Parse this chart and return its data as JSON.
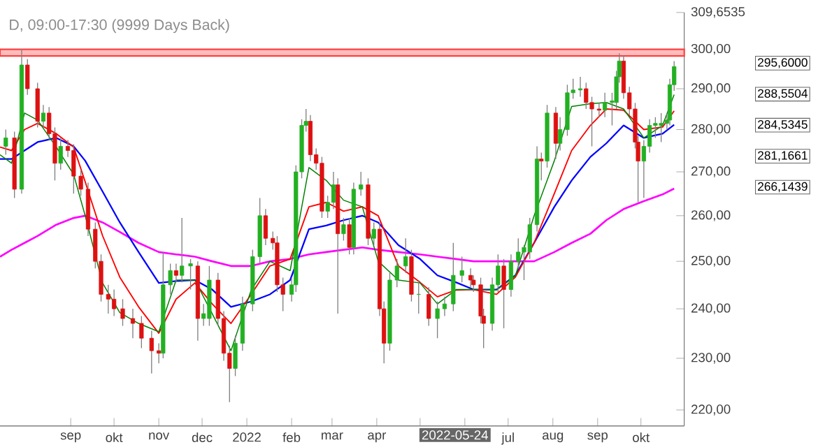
{
  "chart_data": {
    "type": "candlestick",
    "title": "D, 09:00-17:30 (9999 Days Back)",
    "log": true,
    "xlim": [
      "2021-07-14",
      "2022-10-31"
    ],
    "ylim": [
      217,
      309.6535
    ],
    "xticks": [
      {
        "value": "2021-09-01",
        "label": "sep"
      },
      {
        "value": "2021-10-01",
        "label": "okt"
      },
      {
        "value": "2021-11-01",
        "label": "nov"
      },
      {
        "value": "2021-12-01",
        "label": "dec"
      },
      {
        "value": "2022-01-01",
        "label": "2022"
      },
      {
        "value": "2022-02-01",
        "label": "feb"
      },
      {
        "value": "2022-03-01",
        "label": "mar"
      },
      {
        "value": "2022-04-01",
        "label": "apr"
      },
      {
        "value": "2022-05-01",
        "label": null
      },
      {
        "value": "2022-06-01",
        "label": null
      },
      {
        "value": "2022-07-01",
        "label": "jul"
      },
      {
        "value": "2022-08-01",
        "label": "aug"
      },
      {
        "value": "2022-09-01",
        "label": "sep"
      },
      {
        "value": "2022-10-01",
        "label": "okt"
      }
    ],
    "yticks": [
      {
        "value": 220,
        "label": "220,00"
      },
      {
        "value": 230,
        "label": "230,00"
      },
      {
        "value": 240,
        "label": "240,00"
      },
      {
        "value": 250,
        "label": "250,00"
      },
      {
        "value": 260,
        "label": "260,00"
      },
      {
        "value": 270,
        "label": "270,00"
      },
      {
        "value": 280,
        "label": "280,00"
      },
      {
        "value": 290,
        "label": "290,00"
      },
      {
        "value": 300,
        "label": "300,00"
      },
      {
        "value": 309.6535,
        "label": "309,6535"
      }
    ],
    "bands": [
      {
        "axis": "y",
        "from": 298.3,
        "to": 300,
        "color": "#ff4040"
      }
    ],
    "annotations": [
      "2022-05-24",
      "295,6000",
      "288,5504",
      "284,5345",
      "281,1661",
      "266,1439"
    ],
    "x": [
      "2021-07-14",
      "2021-07-22",
      "2021-07-31",
      "2021-08-09",
      "2021-08-22",
      "2021-09-03",
      "2021-09-11",
      "2021-09-23",
      "2021-10-05",
      "2021-10-18",
      "2021-11-01",
      "2021-11-13",
      "2021-11-26",
      "2021-12-08",
      "2021-12-21",
      "2022-01-04",
      "2022-01-17",
      "2022-01-31",
      "2022-02-13",
      "2022-02-25",
      "2022-03-09",
      "2022-03-22",
      "2022-04-02",
      "2022-04-16",
      "2022-05-01",
      "2022-05-13",
      "2022-05-26",
      "2022-06-07",
      "2022-06-23",
      "2022-07-06",
      "2022-07-19",
      "2022-08-02",
      "2022-08-14",
      "2022-08-27",
      "2022-09-07",
      "2022-09-19",
      "2022-10-03",
      "2022-10-16",
      "2022-10-24"
    ],
    "series": [
      {
        "type": "line",
        "color": "#ff00ff",
        "values": [
          251,
          252.5,
          254,
          255.5,
          258,
          259.5,
          260,
          258.5,
          256.4,
          254,
          252,
          251.5,
          251,
          250,
          249,
          249,
          250,
          250.5,
          251.5,
          252,
          252.5,
          253,
          252.5,
          252,
          251.5,
          251,
          250.5,
          250,
          250,
          250,
          250,
          252,
          254,
          256,
          259,
          261.5,
          263.3,
          264.8,
          266.14
        ]
      },
      {
        "type": "line",
        "color": "#0000ff",
        "values": [
          273,
          273,
          275,
          277,
          278,
          276,
          272.6,
          265.5,
          258.5,
          252,
          245.4,
          245.8,
          246,
          244,
          240.4,
          241.5,
          243,
          246,
          257,
          257.8,
          259,
          260,
          258.5,
          253.5,
          250.5,
          247,
          245.5,
          244,
          244,
          247,
          254,
          262,
          268,
          273.5,
          276.7,
          281,
          278,
          279,
          281.17
        ]
      },
      {
        "type": "line",
        "color": "#ff0000",
        "values": [
          275.8,
          275,
          280,
          281.5,
          279,
          275.8,
          267.7,
          255.6,
          246.6,
          240.4,
          235,
          242,
          245.4,
          241,
          237,
          243,
          249,
          250.5,
          262,
          263,
          261,
          262,
          260,
          249,
          245.5,
          242.5,
          243.9,
          244,
          243,
          246.6,
          254,
          265,
          275,
          281,
          285,
          284.7,
          280,
          280.6,
          284.53
        ]
      },
      {
        "type": "line",
        "color": "#008000",
        "values": [
          274,
          272,
          284,
          282.3,
          275.8,
          269.4,
          260,
          245.4,
          239.2,
          237,
          235.3,
          246,
          246,
          239,
          231.5,
          243.9,
          250,
          248,
          271,
          268,
          263.5,
          262,
          250,
          246,
          245.4,
          241,
          244,
          244,
          243.9,
          246.9,
          260,
          272.6,
          285.6,
          286.3,
          286.6,
          285,
          278,
          281,
          288.55
        ]
      },
      {
        "color": "#808080",
        "x": [
          "2021-07-18",
          "2021-07-24",
          "2021-07-29",
          "2021-08-02",
          "2021-08-09",
          "2021-08-13",
          "2021-08-17",
          "2021-08-21",
          "2021-08-25",
          "2021-08-30",
          "2021-09-03",
          "2021-09-08",
          "2021-09-13",
          "2021-09-18",
          "2021-09-22",
          "2021-09-27",
          "2021-10-01",
          "2021-10-07",
          "2021-10-14",
          "2021-10-20",
          "2021-10-27",
          "2021-11-01",
          "2021-11-04",
          "2021-11-09",
          "2021-11-13",
          "2021-11-17",
          "2021-11-23",
          "2021-11-28",
          "2021-12-02",
          "2021-12-06",
          "2021-12-12",
          "2021-12-16",
          "2021-12-20",
          "2021-12-24",
          "2021-12-29",
          "2022-01-05",
          "2022-01-10",
          "2022-01-14",
          "2022-01-19",
          "2022-01-22",
          "2022-01-26",
          "2022-02-01",
          "2022-02-04",
          "2022-02-08",
          "2022-02-11",
          "2022-02-14",
          "2022-02-18",
          "2022-02-22",
          "2022-02-26",
          "2022-03-02",
          "2022-03-05",
          "2022-03-09",
          "2022-03-13",
          "2022-03-16",
          "2022-03-21",
          "2022-03-26",
          "2022-03-30",
          "2022-04-03",
          "2022-04-06",
          "2022-04-10",
          "2022-04-15",
          "2022-04-21",
          "2022-04-25",
          "2022-04-30",
          "2022-05-07",
          "2022-05-13",
          "2022-05-18",
          "2022-05-24",
          "2022-05-30",
          "2022-06-05",
          "2022-06-07",
          "2022-06-12",
          "2022-06-14",
          "2022-06-20",
          "2022-06-24",
          "2022-06-28",
          "2022-07-03",
          "2022-07-08",
          "2022-07-12",
          "2022-07-16",
          "2022-07-21",
          "2022-07-24",
          "2022-07-28",
          "2022-08-03",
          "2022-08-06",
          "2022-08-11",
          "2022-08-15",
          "2022-08-20",
          "2022-08-24",
          "2022-08-28",
          "2022-09-02",
          "2022-09-06",
          "2022-09-11",
          "2022-09-14",
          "2022-09-16",
          "2022-09-19",
          "2022-09-23",
          "2022-09-27",
          "2022-09-29",
          "2022-10-03",
          "2022-10-07",
          "2022-10-11",
          "2022-10-15",
          "2022-10-19",
          "2022-10-21",
          "2022-10-24"
        ],
        "ohlc": [
          [
            276,
            280,
            274,
            278
          ],
          [
            278,
            279.5,
            264,
            266
          ],
          [
            266,
            300,
            265,
            296
          ],
          [
            296,
            297.5,
            288.5,
            290
          ],
          [
            290,
            291.5,
            280.5,
            282
          ],
          [
            282,
            286,
            280.5,
            284
          ],
          [
            284,
            285.5,
            277.5,
            279
          ],
          [
            279,
            280.5,
            268,
            272
          ],
          [
            272,
            278,
            270.5,
            276
          ],
          [
            276,
            277.5,
            273.5,
            275
          ],
          [
            275,
            276.5,
            265,
            269
          ],
          [
            269,
            270.5,
            264.5,
            266
          ],
          [
            266,
            267.5,
            255.5,
            257
          ],
          [
            257,
            258.5,
            248.5,
            250
          ],
          [
            250,
            251.5,
            241.5,
            243
          ],
          [
            243,
            245,
            239,
            242
          ],
          [
            242,
            244,
            238.5,
            240
          ],
          [
            240,
            242,
            236.5,
            238
          ],
          [
            238,
            240,
            234,
            237
          ],
          [
            237,
            238.5,
            232,
            234
          ],
          [
            234,
            235.5,
            227,
            231.5
          ],
          [
            231.5,
            233,
            229,
            231
          ],
          [
            231,
            252,
            230,
            245
          ],
          [
            245,
            249.5,
            243,
            248
          ],
          [
            248,
            249.5,
            245.5,
            247
          ],
          [
            247,
            259.5,
            245.5,
            249
          ],
          [
            249,
            250.5,
            244,
            249.5
          ],
          [
            249,
            250,
            233.5,
            238
          ],
          [
            238,
            241,
            236.5,
            239
          ],
          [
            238,
            249,
            236.5,
            246
          ],
          [
            246,
            247.5,
            236.5,
            238
          ],
          [
            238,
            239.5,
            229.5,
            231
          ],
          [
            231,
            232.5,
            221.5,
            228
          ],
          [
            228,
            234.5,
            226.5,
            233
          ],
          [
            233,
            242.5,
            231.5,
            241
          ],
          [
            241,
            252.5,
            239.5,
            251
          ],
          [
            251,
            264,
            249.5,
            260
          ],
          [
            260,
            261.5,
            253.5,
            255
          ],
          [
            255,
            256.5,
            252.5,
            254
          ],
          [
            254,
            255.5,
            243.5,
            245
          ],
          [
            245,
            246.5,
            239.5,
            243
          ],
          [
            243,
            246.5,
            241.5,
            245
          ],
          [
            245,
            271.5,
            243.5,
            270
          ],
          [
            270,
            282.5,
            268.5,
            281
          ],
          [
            281,
            285,
            279.5,
            282
          ],
          [
            282,
            283.5,
            272.5,
            274
          ],
          [
            274,
            275.5,
            270.5,
            272
          ],
          [
            272,
            273.5,
            259.5,
            261
          ],
          [
            261,
            264.5,
            259.5,
            263
          ],
          [
            263,
            270,
            261.5,
            267
          ],
          [
            267,
            268.5,
            239,
            256
          ],
          [
            256,
            259.5,
            254.5,
            258
          ],
          [
            258,
            259.5,
            251.5,
            253
          ],
          [
            253,
            267.5,
            251.5,
            266
          ],
          [
            266,
            270,
            264.5,
            267
          ],
          [
            267,
            268.5,
            253.5,
            255
          ],
          [
            255,
            258.5,
            253.5,
            257
          ],
          [
            257,
            258.5,
            238.5,
            240
          ],
          [
            240,
            241.5,
            229,
            233
          ],
          [
            233,
            247.5,
            231.5,
            246
          ],
          [
            246,
            250.5,
            244.5,
            249
          ],
          [
            249,
            255,
            247.5,
            251
          ],
          [
            251,
            252.5,
            241.5,
            243
          ],
          [
            243,
            246,
            239,
            243
          ],
          [
            243,
            244.5,
            236.5,
            238
          ],
          [
            238,
            241.5,
            234,
            240
          ],
          [
            240,
            242.5,
            238.5,
            241
          ],
          [
            241,
            254,
            239.5,
            247
          ],
          [
            247,
            251,
            245.5,
            248
          ],
          [
            247,
            248.5,
            244.5,
            246
          ],
          [
            246,
            247,
            243.5,
            245
          ],
          [
            245,
            246.5,
            237,
            238.5
          ],
          [
            238.5,
            240,
            232,
            237
          ],
          [
            237,
            246.5,
            235.5,
            245
          ],
          [
            245,
            251.5,
            243.5,
            249
          ],
          [
            249,
            250.5,
            236,
            244
          ],
          [
            244,
            251.5,
            242.5,
            250
          ],
          [
            250,
            255,
            248.5,
            252
          ],
          [
            252,
            253.5,
            246,
            253
          ],
          [
            252,
            259.5,
            250.5,
            258
          ],
          [
            258,
            276,
            256.5,
            273
          ],
          [
            273,
            274.5,
            268,
            272.5
          ],
          [
            272.5,
            286,
            271,
            284
          ],
          [
            284,
            285.5,
            273,
            276.7
          ],
          [
            276.7,
            283,
            275,
            280
          ],
          [
            280,
            291,
            278.5,
            289
          ],
          [
            289,
            292.5,
            287.5,
            289.7
          ],
          [
            289.7,
            293,
            288,
            290
          ],
          [
            290,
            291.5,
            285,
            286.6
          ],
          [
            286.6,
            288,
            276,
            285
          ],
          [
            285,
            286.5,
            283,
            284.7
          ],
          [
            284.7,
            289,
            283,
            286.6
          ],
          [
            286.6,
            289,
            281,
            287
          ],
          [
            286.6,
            294.5,
            285,
            293
          ],
          [
            293,
            299,
            291.5,
            297
          ],
          [
            297,
            298.5,
            287.5,
            289
          ],
          [
            289,
            290.5,
            283.5,
            285
          ],
          [
            285,
            286.5,
            275.5,
            277
          ],
          [
            277,
            278.5,
            263,
            272.5
          ],
          [
            272.5,
            277.5,
            264,
            276
          ],
          [
            276,
            282.5,
            274.5,
            281
          ],
          [
            281,
            283,
            278,
            281.5
          ],
          [
            281,
            284,
            277,
            281.5
          ],
          [
            281.5,
            284,
            280,
            282.3
          ],
          [
            282.3,
            292.5,
            281,
            291
          ],
          [
            291,
            297,
            289.5,
            295.6
          ]
        ],
        "colors": [
          "#22b022",
          "#dd1111",
          "#22b022",
          "#dd1111",
          "#dd1111",
          "#22b022",
          "#dd1111",
          "#dd1111",
          "#22b022",
          "#dd1111",
          "#dd1111",
          "#dd1111",
          "#dd1111",
          "#dd1111",
          "#dd1111",
          "#dd1111",
          "#dd1111",
          "#dd1111",
          "#dd1111",
          "#dd1111",
          "#dd1111",
          "#dd1111",
          "#22b022",
          "#22b022",
          "#dd1111",
          "#22b022",
          "#22b022",
          "#dd1111",
          "#22b022",
          "#22b022",
          "#dd1111",
          "#dd1111",
          "#dd1111",
          "#22b022",
          "#22b022",
          "#22b022",
          "#22b022",
          "#dd1111",
          "#dd1111",
          "#dd1111",
          "#dd1111",
          "#22b022",
          "#22b022",
          "#22b022",
          "#22b022",
          "#dd1111",
          "#dd1111",
          "#dd1111",
          "#22b022",
          "#22b022",
          "#dd1111",
          "#22b022",
          "#dd1111",
          "#22b022",
          "#22b022",
          "#dd1111",
          "#22b022",
          "#dd1111",
          "#dd1111",
          "#22b022",
          "#22b022",
          "#22b022",
          "#dd1111",
          "#22b022",
          "#dd1111",
          "#22b022",
          "#22b022",
          "#22b022",
          "#22b022",
          "#dd1111",
          "#dd1111",
          "#dd1111",
          "#dd1111",
          "#22b022",
          "#22b022",
          "#dd1111",
          "#22b022",
          "#22b022",
          "#22b022",
          "#22b022",
          "#22b022",
          "#dd1111",
          "#22b022",
          "#dd1111",
          "#22b022",
          "#22b022",
          "#22b022",
          "#22b022",
          "#dd1111",
          "#dd1111",
          "#dd1111",
          "#22b022",
          "#22b022",
          "#22b022",
          "#22b022",
          "#dd1111",
          "#dd1111",
          "#dd1111",
          "#dd1111",
          "#22b022",
          "#22b022",
          "#22b022",
          "#22b022",
          "#22b022",
          "#22b022",
          "#22b022"
        ]
      }
    ]
  }
}
